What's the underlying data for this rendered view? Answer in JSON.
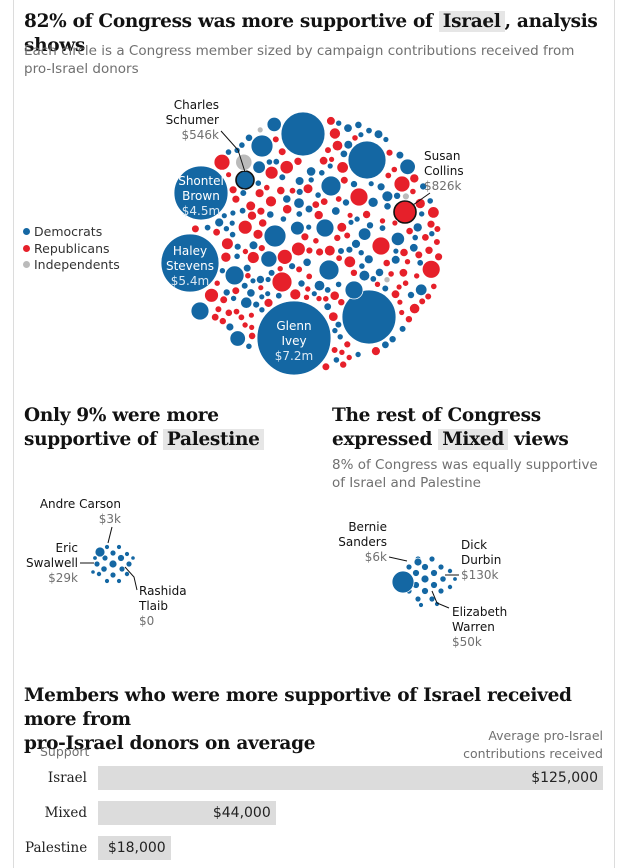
{
  "colors": {
    "democrat": "#1467a3",
    "republican": "#e6202a",
    "independent": "#bbbbbb",
    "label_grey": "#707070",
    "bar_grey": "#dcdcdc"
  },
  "header": {
    "title_pre": "82% of Congress was more supportive of",
    "title_highlight": "Israel",
    "title_post": ", analysis shows",
    "subtitle": "Each circle is a Congress member sized by campaign contributions received from pro-Israel donors"
  },
  "legend": {
    "items": [
      "Democrats",
      "Republicans",
      "Independents"
    ]
  },
  "main_chart": {
    "annotations": [
      {
        "name": "Charles Schumer",
        "line1": "Charles",
        "line2": "Schumer",
        "amount": "$546k"
      },
      {
        "name": "Susan Collins",
        "line1": "Susan",
        "line2": "Collins",
        "amount": "$826k"
      },
      {
        "name": "Shontel Brown",
        "line1": "Shontel",
        "line2": "Brown",
        "amount": "$4.5m"
      },
      {
        "name": "Haley Stevens",
        "line1": "Haley",
        "line2": "Stevens",
        "amount": "$5.4m"
      },
      {
        "name": "Glenn Ivey",
        "line1": "Glenn",
        "line2": "Ivey",
        "amount": "$7.2m"
      }
    ]
  },
  "palestine": {
    "title_pre": "Only 9% were more",
    "title_pre2": "supportive of",
    "title_highlight": "Palestine",
    "annotations": [
      {
        "line1": "Andre Carson",
        "amount": "$3k"
      },
      {
        "line1": "Eric",
        "line2": "Swalwell",
        "amount": "$29k"
      },
      {
        "line1": "Rashida",
        "line2": "Tlaib",
        "amount": "$0"
      }
    ]
  },
  "mixed": {
    "title_pre": "The rest of Congress",
    "title_pre2": "expressed",
    "title_highlight": "Mixed",
    "title_post": "views",
    "subtitle": "8% of Congress was equally supportive of Israel and Palestine",
    "annotations": [
      {
        "line1": "Bernie",
        "line2": "Sanders",
        "amount": "$6k"
      },
      {
        "line1": "Dick",
        "line2": "Durbin",
        "amount": "$130k"
      },
      {
        "line1": "Elizabeth",
        "line2": "Warren",
        "amount": "$50k"
      }
    ]
  },
  "bar_section": {
    "title_line1": "Members who were more supportive of Israel received more from",
    "title_line2": "pro-Israel donors on average",
    "col_support": "Support",
    "col_value_line1": "Average pro-Israel",
    "col_value_line2": "contributions received"
  },
  "chart_data": {
    "type": "bar",
    "categories": [
      "Israel",
      "Mixed",
      "Palestine"
    ],
    "values": [
      125000,
      44000,
      18000
    ],
    "value_labels": [
      "$125,000",
      "$44,000",
      "$18,000"
    ],
    "ylabel": "Average pro-Israel contributions received"
  }
}
